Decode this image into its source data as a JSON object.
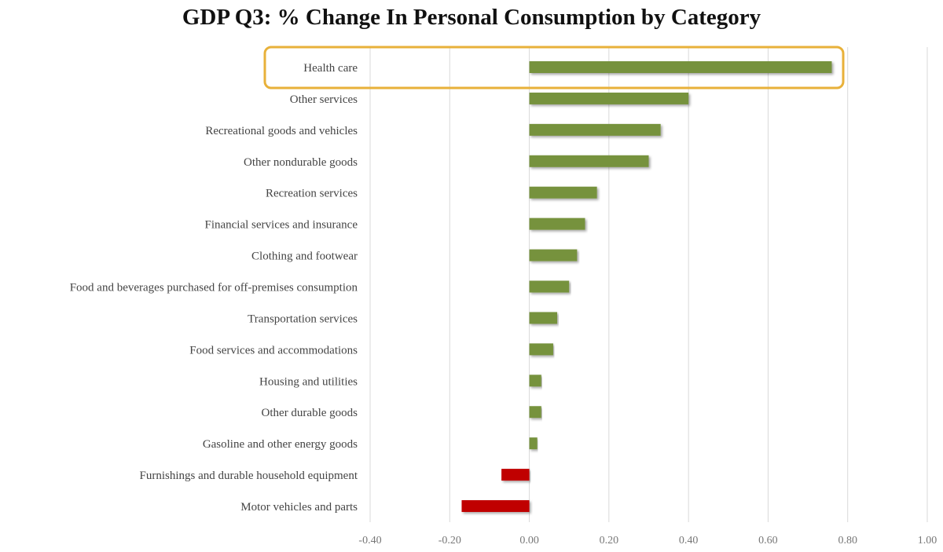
{
  "chart_data": {
    "type": "bar",
    "orientation": "horizontal",
    "title": "GDP Q3: % Change In Personal Consumption by Category",
    "categories": [
      "Health care",
      "Other services",
      "Recreational goods and vehicles",
      "Other nondurable goods",
      "Recreation services",
      "Financial services and insurance",
      "Clothing and footwear",
      "Food and beverages purchased for off-premises consumption",
      "Transportation services",
      "Food services and accommodations",
      "Housing and utilities",
      "Other durable goods",
      "Gasoline and other energy goods",
      "Furnishings and durable household equipment",
      "Motor vehicles and parts"
    ],
    "values": [
      0.76,
      0.4,
      0.33,
      0.3,
      0.17,
      0.14,
      0.12,
      0.1,
      0.07,
      0.06,
      0.03,
      0.03,
      0.02,
      -0.07,
      -0.17
    ],
    "xlim": [
      -0.4,
      1.0
    ],
    "xticks": [
      "-0.40",
      "-0.20",
      "0.00",
      "0.20",
      "0.40",
      "0.60",
      "0.80",
      "1.00"
    ],
    "grid": "vertical",
    "highlighted": "Health care",
    "colors": {
      "positive": "#76923C",
      "negative": "#C00000",
      "highlight": "#E8B13A",
      "grid": "#D9D9D9"
    }
  }
}
